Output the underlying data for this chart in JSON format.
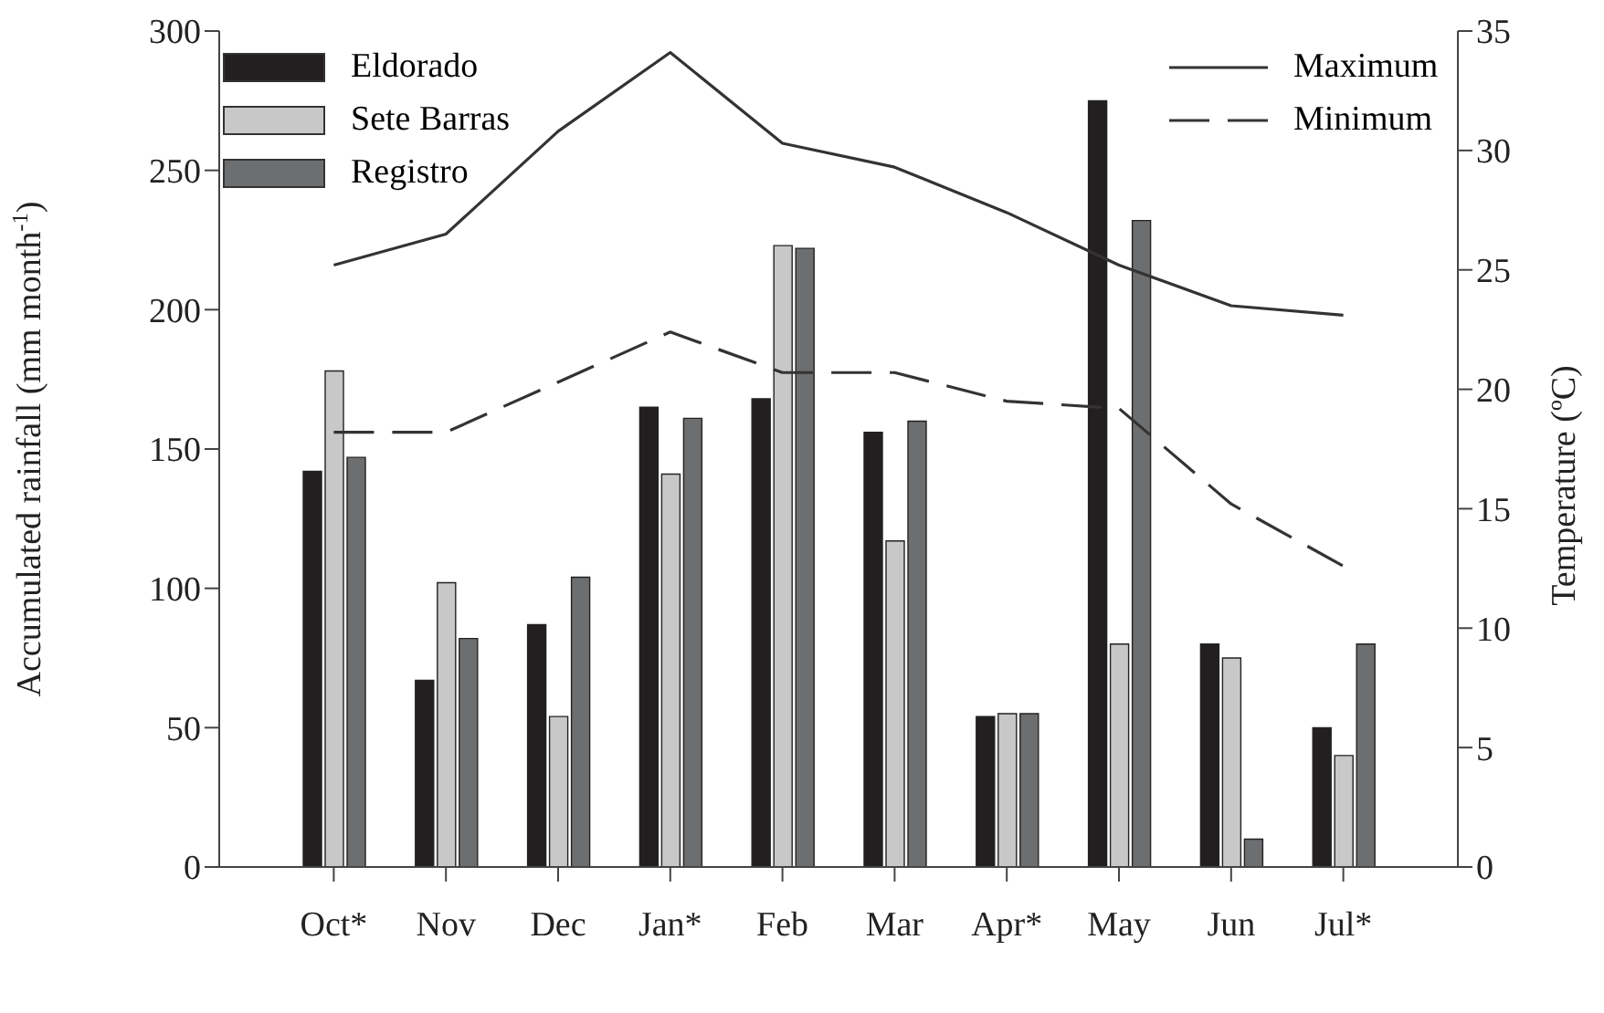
{
  "chart_data": {
    "type": "bar",
    "categories": [
      "Oct*",
      "Nov",
      "Dec",
      "Jan*",
      "Feb",
      "Mar",
      "Apr*",
      "May",
      "Jun",
      "Jul*"
    ],
    "ylabel": "Accumulated rainfall (mm month$^{-1}$)",
    "y2label": "Temperature (ºC)",
    "ylim": [
      0,
      300
    ],
    "yticks": [
      0,
      50,
      100,
      150,
      200,
      250,
      300
    ],
    "y2lim": [
      0,
      35
    ],
    "y2ticks": [
      0,
      5,
      10,
      15,
      20,
      25,
      30,
      35
    ],
    "legend": "top",
    "grid": false,
    "series": [
      {
        "name": "Eldorado",
        "color": "#231f20",
        "values": [
          142,
          67,
          87,
          165,
          168,
          156,
          54,
          275,
          80,
          50
        ]
      },
      {
        "name": "Sete Barras",
        "color": "#c8c8c8",
        "values": [
          178,
          102,
          54,
          141,
          223,
          117,
          55,
          80,
          75,
          40
        ]
      },
      {
        "name": "Registro",
        "color": "#6d6e70",
        "values": [
          147,
          82,
          104,
          161,
          222,
          160,
          55,
          232,
          10,
          80
        ]
      },
      {
        "name": "Maximum",
        "type": "line",
        "axis": "y2",
        "color": "#333333",
        "line_style": "solid",
        "values": [
          25.2,
          26.5,
          30.8,
          34.1,
          30.3,
          29.3,
          27.4,
          25.2,
          23.5,
          23.1
        ]
      },
      {
        "name": "Minimum",
        "type": "line",
        "axis": "y2",
        "color": "#333333",
        "line_style": "dashed",
        "values": [
          18.2,
          18.2,
          20.3,
          22.4,
          20.7,
          20.7,
          19.5,
          19.2,
          15.2,
          12.6
        ]
      }
    ]
  }
}
